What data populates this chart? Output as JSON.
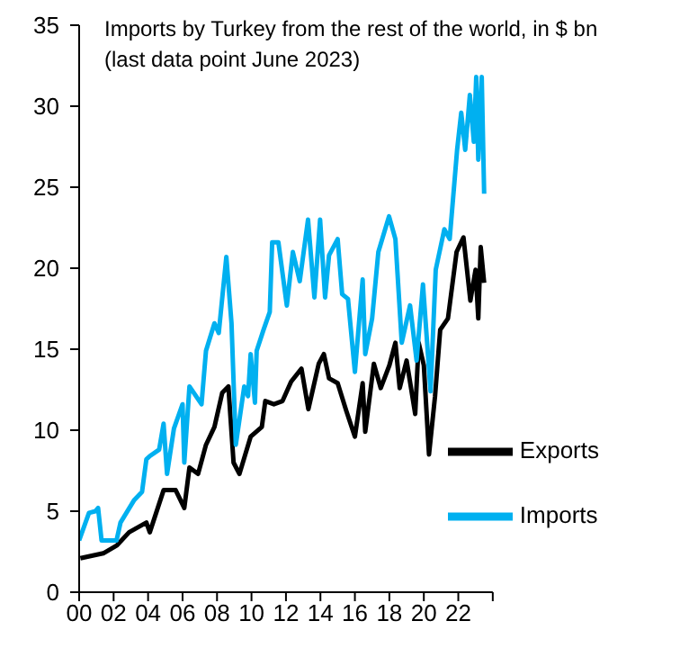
{
  "chart_data": {
    "type": "line",
    "title": "Imports by Turkey from the rest of the world, in $ bn (last data point June 2023)",
    "xlim": [
      2000,
      2024
    ],
    "xticks": [
      {
        "value": 2000,
        "label": "00"
      },
      {
        "value": 2002,
        "label": "02"
      },
      {
        "value": 2004,
        "label": "04"
      },
      {
        "value": 2006,
        "label": "06"
      },
      {
        "value": 2008,
        "label": "08"
      },
      {
        "value": 2010,
        "label": "10"
      },
      {
        "value": 2012,
        "label": "12"
      },
      {
        "value": 2014,
        "label": "14"
      },
      {
        "value": 2016,
        "label": "16"
      },
      {
        "value": 2018,
        "label": "18"
      },
      {
        "value": 2020,
        "label": "20"
      },
      {
        "value": 2022,
        "label": "22"
      },
      {
        "value": 2024,
        "label": null
      }
    ],
    "ylim": [
      0,
      35
    ],
    "yticks": [
      0,
      5,
      10,
      15,
      20,
      25,
      30,
      35
    ],
    "grid": false,
    "legend": "bottom right",
    "marker": "none",
    "line_style": "solid",
    "series": [
      {
        "name": "Exports",
        "color": "#000000",
        "x": [
          2000.07,
          2001.4,
          2002.2,
          2002.9,
          2003.9,
          2004.1,
          2004.9,
          2005.6,
          2006.1,
          2006.4,
          2006.9,
          2007.36,
          2007.85,
          2008.3,
          2008.66,
          2008.96,
          2009.3,
          2009.95,
          2010.6,
          2010.8,
          2011.3,
          2011.8,
          2012.3,
          2012.9,
          2013.3,
          2013.9,
          2014.2,
          2014.5,
          2015,
          2015.5,
          2016,
          2016.45,
          2016.6,
          2017.1,
          2017.5,
          2018,
          2018.35,
          2018.6,
          2019,
          2019.5,
          2019.7,
          2020,
          2020.3,
          2020.65,
          2020.95,
          2021.4,
          2021.9,
          2022.3,
          2022.7,
          2023,
          2023.16,
          2023.3,
          2023.5
        ],
        "values": [
          2.1,
          2.4,
          2.9,
          3.7,
          4.3,
          3.7,
          6.3,
          6.3,
          5.2,
          7.7,
          7.3,
          9.1,
          10.2,
          12.3,
          12.7,
          8,
          7.3,
          9.6,
          10.2,
          11.8,
          11.6,
          11.8,
          13,
          13.8,
          11.3,
          14.1,
          14.7,
          13.2,
          12.9,
          11.2,
          9.6,
          12.9,
          9.9,
          14.1,
          12.6,
          14,
          15.4,
          12.6,
          14.3,
          11,
          15.4,
          14,
          8.5,
          12.1,
          16.2,
          16.9,
          21,
          21.9,
          18,
          19.9,
          16.9,
          21.3,
          19.1
        ]
      },
      {
        "name": "Imports",
        "color": "#00b0f0",
        "x": [
          2000,
          2000.57,
          2000.94,
          2001.1,
          2001.3,
          2002.17,
          2002.4,
          2003.2,
          2003.65,
          2003.9,
          2004.1,
          2004.64,
          2004.9,
          2005.1,
          2005.5,
          2006,
          2006.1,
          2006.4,
          2007.1,
          2007.36,
          2007.85,
          2008.1,
          2008.54,
          2008.84,
          2009.09,
          2009.58,
          2009.8,
          2009.95,
          2010.2,
          2010.3,
          2010.7,
          2011.06,
          2011.2,
          2011.56,
          2012.05,
          2012.4,
          2012.8,
          2013.28,
          2013.65,
          2013.98,
          2014.27,
          2014.5,
          2015,
          2015.26,
          2015.6,
          2016,
          2016.45,
          2016.6,
          2017,
          2017.36,
          2017.98,
          2018.35,
          2018.72,
          2019.2,
          2019.58,
          2019.95,
          2020.39,
          2020.69,
          2021.19,
          2021.5,
          2021.93,
          2022.17,
          2022.4,
          2022.67,
          2022.9,
          2023.04,
          2023.16,
          2023.36,
          2023.5
        ],
        "values": [
          3.2,
          4.9,
          5,
          5.2,
          3.2,
          3.2,
          4.3,
          5.7,
          6.2,
          8.2,
          8.4,
          8.8,
          10.4,
          7.3,
          10.1,
          11.6,
          8,
          12.7,
          11.6,
          14.9,
          16.6,
          16,
          20.7,
          16.6,
          9.1,
          12.7,
          12.1,
          14.7,
          11.7,
          14.9,
          16.2,
          17.3,
          21.6,
          21.6,
          17.7,
          21,
          19.2,
          23,
          18.2,
          23,
          18.2,
          20.8,
          21.8,
          18.4,
          18.1,
          13.6,
          19.3,
          14.7,
          16.9,
          21,
          23.2,
          21.8,
          15.4,
          17.7,
          14.3,
          19,
          12.4,
          19.9,
          22.4,
          21.8,
          27.3,
          29.6,
          27.3,
          30.7,
          27.8,
          31.8,
          26.7,
          31.8,
          24.6
        ]
      }
    ]
  }
}
